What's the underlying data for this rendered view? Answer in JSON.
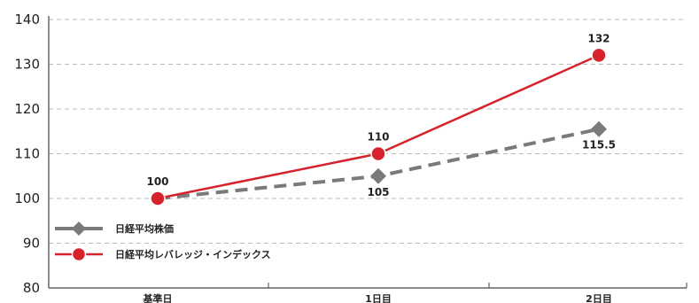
{
  "chart_data": {
    "type": "line",
    "title": "",
    "xlabel": "",
    "ylabel": "",
    "categories": [
      "基準日",
      "1日目",
      "2日目"
    ],
    "ylim": [
      80,
      140
    ],
    "yticks": [
      80,
      90,
      100,
      110,
      120,
      130,
      140
    ],
    "grid": true,
    "legend_position": "bottom-left",
    "series": [
      {
        "name": "日経平均レバレッジ・インデックス",
        "values": [
          100,
          110,
          132
        ],
        "labels": [
          "100",
          "110",
          "132"
        ],
        "color": "#d6232b",
        "marker": "circle",
        "line_style": "solid"
      },
      {
        "name": "日経平均株価",
        "values": [
          100,
          105,
          115.5
        ],
        "labels": [
          "",
          "105",
          "115.5"
        ],
        "color": "#7a7a7a",
        "marker": "diamond",
        "line_style": "dashed"
      }
    ]
  },
  "legend": [
    {
      "label": "日経平均株価",
      "color": "#7a7a7a",
      "marker": "diamond"
    },
    {
      "label": "日経平均レバレッジ・インデックス",
      "color": "#d6232b",
      "marker": "circle"
    }
  ]
}
